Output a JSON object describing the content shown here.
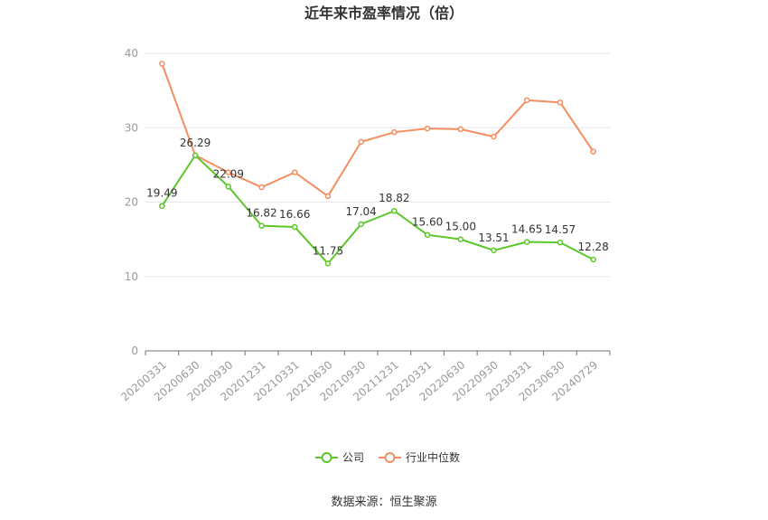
{
  "chart_data": {
    "type": "line",
    "title": "近年来市盈率情况（倍）",
    "x": [
      "20200331",
      "20200630",
      "20200930",
      "20201231",
      "20210331",
      "20210630",
      "20210930",
      "20211231",
      "20220331",
      "20220630",
      "20220930",
      "20230331",
      "20230630",
      "20240729"
    ],
    "ylim": [
      0,
      40
    ],
    "yticks": [
      "0",
      "10",
      "20",
      "30",
      "40"
    ],
    "grid": true,
    "legend_position": "bottom-center",
    "series": [
      {
        "name": "公司",
        "color": "#5cc72a",
        "values": [
          19.49,
          26.29,
          22.09,
          16.82,
          16.66,
          11.75,
          17.04,
          18.82,
          15.6,
          15.0,
          13.51,
          14.65,
          14.57,
          12.28
        ],
        "labels": [
          "19.49",
          "26.29",
          "22.09",
          "16.82",
          "16.66",
          "11.75",
          "17.04",
          "18.82",
          "15.60",
          "15.00",
          "13.51",
          "14.65",
          "14.57",
          "12.28"
        ]
      },
      {
        "name": "行业中位数",
        "color": "#f28e60",
        "values": [
          38.6,
          26.3,
          24.0,
          22.0,
          24.0,
          20.8,
          28.1,
          29.4,
          29.9,
          29.8,
          28.8,
          33.7,
          33.4,
          26.8
        ]
      }
    ],
    "source": "数据来源：恒生聚源"
  }
}
